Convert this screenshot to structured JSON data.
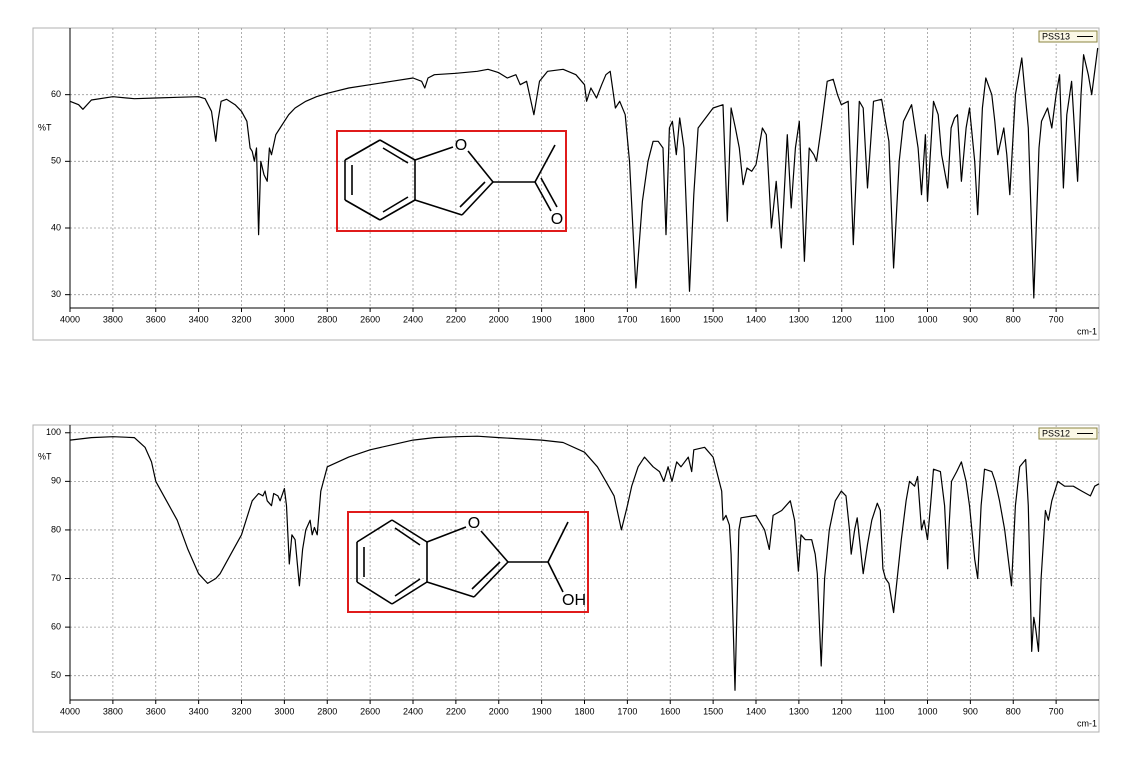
{
  "chart_data": [
    {
      "type": "line",
      "y_label": "%T",
      "x_label": "cm-1",
      "legend": "upper right",
      "grid": true,
      "annotations": [
        "O",
        "O"
      ],
      "xlim": [
        4000,
        600
      ],
      "ylim": [
        28,
        70
      ],
      "xticks": [
        4000,
        3800,
        3600,
        3400,
        3200,
        3000,
        2800,
        2600,
        2400,
        2200,
        2000,
        1900,
        1800,
        1700,
        1600,
        1500,
        1400,
        1300,
        1200,
        1100,
        1000,
        900,
        800,
        700
      ],
      "yticks": [
        30,
        40,
        50,
        60
      ],
      "x": [
        4000,
        3960,
        3940,
        3900,
        3800,
        3700,
        3600,
        3500,
        3400,
        3370,
        3340,
        3320,
        3310,
        3295,
        3270,
        3230,
        3200,
        3175,
        3160,
        3150,
        3140,
        3130,
        3120,
        3110,
        3095,
        3080,
        3070,
        3060,
        3040,
        3020,
        3000,
        2980,
        2950,
        2900,
        2850,
        2800,
        2700,
        2600,
        2500,
        2400,
        2360,
        2345,
        2330,
        2300,
        2200,
        2100,
        2050,
        2020,
        2000,
        1980,
        1960,
        1950,
        1935,
        1918,
        1905,
        1886,
        1850,
        1820,
        1800,
        1795,
        1785,
        1772,
        1760,
        1750,
        1740,
        1728,
        1718,
        1705,
        1695,
        1680,
        1665,
        1652,
        1640,
        1628,
        1617,
        1610,
        1602,
        1595,
        1586,
        1578,
        1568,
        1555,
        1545,
        1535,
        1500,
        1477,
        1467,
        1458,
        1448,
        1439,
        1430,
        1421,
        1410,
        1400,
        1385,
        1376,
        1364,
        1353,
        1341,
        1327,
        1318,
        1308,
        1299,
        1287,
        1276,
        1265,
        1259,
        1248,
        1234,
        1220,
        1210,
        1201,
        1185,
        1173,
        1159,
        1150,
        1140,
        1126,
        1107,
        1090,
        1079,
        1066,
        1056,
        1037,
        1022,
        1014,
        1005,
        1000,
        986,
        975,
        967,
        953,
        945,
        937,
        930,
        921,
        910,
        902,
        890,
        883,
        872,
        864,
        850,
        843,
        836,
        822,
        815,
        808,
        795,
        780,
        765,
        752,
        740,
        734,
        720,
        710,
        700,
        692,
        683,
        675,
        664,
        650,
        642,
        636,
        625,
        617,
        603
      ],
      "series": [
        {
          "name": "PSS13",
          "color": "#000000",
          "values": [
            59,
            58.5,
            57.8,
            59.2,
            59.7,
            59.4,
            59.5,
            59.6,
            59.7,
            59.4,
            57.5,
            53,
            56,
            59,
            59.3,
            58.5,
            57.5,
            56,
            52,
            51.5,
            50,
            52,
            39,
            50,
            48,
            47,
            52,
            51,
            54,
            55,
            56,
            57,
            58,
            59,
            59.7,
            60.2,
            61,
            61.5,
            62,
            62.5,
            62,
            61,
            62.5,
            63,
            63.2,
            63.5,
            63.8,
            63.5,
            63.3,
            62.5,
            63,
            61.5,
            62,
            57,
            62,
            63.5,
            63.8,
            63,
            61.5,
            59,
            61,
            59.5,
            61.5,
            63,
            63.5,
            58,
            59,
            57,
            50,
            31,
            44,
            50,
            53,
            53,
            52,
            39,
            55,
            56,
            51,
            56.5,
            52,
            30.5,
            45,
            55,
            58,
            58.5,
            41,
            58,
            55,
            52,
            46.5,
            49,
            48.5,
            49.5,
            55,
            54,
            40,
            47,
            37,
            54,
            43,
            52,
            56,
            35,
            52,
            51,
            50,
            55,
            62,
            62.3,
            60,
            58.5,
            59,
            37.5,
            59,
            58,
            46,
            59,
            59.3,
            53,
            34,
            50,
            56,
            58.5,
            52,
            45,
            54,
            44,
            59,
            57,
            51,
            46,
            55,
            56.5,
            57,
            47,
            55,
            58,
            50,
            42,
            58,
            62.5,
            60,
            56,
            51,
            55,
            51,
            45,
            60,
            65.5,
            55,
            29.5,
            52,
            56,
            58,
            55,
            60,
            63,
            46,
            57,
            62,
            47,
            60,
            66,
            63,
            60,
            67
          ]
        }
      ]
    },
    {
      "type": "line",
      "y_label": "%T",
      "x_label": "cm-1",
      "legend": "upper right",
      "grid": true,
      "annotations": [
        "O",
        "OH"
      ],
      "xlim": [
        4000,
        600
      ],
      "ylim": [
        45,
        101.6
      ],
      "xticks": [
        4000,
        3800,
        3600,
        3400,
        3200,
        3000,
        2800,
        2600,
        2400,
        2200,
        2000,
        1900,
        1800,
        1700,
        1600,
        1500,
        1400,
        1300,
        1200,
        1100,
        1000,
        900,
        800,
        700
      ],
      "yticks": [
        50,
        60,
        70,
        80,
        90,
        100
      ],
      "x": [
        4000,
        3900,
        3800,
        3700,
        3650,
        3620,
        3600,
        3550,
        3500,
        3450,
        3400,
        3358,
        3320,
        3300,
        3250,
        3200,
        3150,
        3120,
        3100,
        3090,
        3080,
        3060,
        3050,
        3030,
        3020,
        3000,
        2990,
        2977,
        2965,
        2950,
        2930,
        2915,
        2900,
        2880,
        2870,
        2860,
        2847,
        2830,
        2800,
        2700,
        2600,
        2500,
        2400,
        2300,
        2200,
        2100,
        2000,
        1900,
        1850,
        1800,
        1770,
        1750,
        1731,
        1714,
        1700,
        1690,
        1675,
        1660,
        1640,
        1625,
        1615,
        1605,
        1596,
        1585,
        1575,
        1558,
        1550,
        1545,
        1520,
        1500,
        1480,
        1477,
        1470,
        1462,
        1458,
        1449,
        1440,
        1435,
        1400,
        1390,
        1380,
        1369,
        1360,
        1340,
        1320,
        1310,
        1301,
        1295,
        1285,
        1270,
        1262,
        1257,
        1248,
        1240,
        1229,
        1215,
        1201,
        1190,
        1182,
        1178,
        1170,
        1164,
        1150,
        1140,
        1130,
        1117,
        1110,
        1104,
        1098,
        1090,
        1079,
        1061,
        1050,
        1042,
        1030,
        1023,
        1014,
        1008,
        1000,
        993,
        986,
        970,
        960,
        953,
        950,
        944,
        932,
        921,
        910,
        902,
        890,
        883,
        875,
        867,
        850,
        842,
        832,
        820,
        804,
        795,
        785,
        771,
        765,
        757,
        752,
        748,
        741,
        735,
        725,
        718,
        710,
        696,
        680,
        660,
        640,
        620,
        610,
        600
      ],
      "series": [
        {
          "name": "PSS12",
          "color": "#000000",
          "values": [
            98.5,
            99,
            99.2,
            99,
            97,
            94,
            90,
            86,
            82,
            76,
            71,
            69,
            70,
            71,
            75,
            79,
            86,
            87.5,
            87,
            88,
            86,
            85,
            87.5,
            87,
            86,
            88.5,
            85,
            73,
            79,
            78,
            68.5,
            76,
            80,
            82,
            79,
            80.5,
            79,
            88,
            93,
            95,
            96.5,
            97.5,
            98.5,
            99,
            99.2,
            99.3,
            99,
            98.5,
            98,
            96,
            93,
            90,
            87,
            80,
            85,
            89,
            93,
            95,
            93,
            92,
            90,
            93,
            90,
            94,
            93,
            95,
            92,
            96.5,
            97,
            95,
            88,
            82,
            83,
            81,
            75,
            47,
            80,
            82.5,
            83,
            81.5,
            80,
            76,
            83,
            84,
            86,
            82,
            71.5,
            79,
            78,
            78,
            75,
            71,
            52,
            70,
            80,
            86,
            88,
            87,
            80,
            75,
            80,
            82.5,
            71,
            77,
            82,
            85.5,
            84,
            72,
            70,
            69,
            63,
            78,
            86,
            90,
            89,
            91,
            80,
            82,
            78,
            85,
            92.5,
            92,
            85,
            72,
            80,
            90,
            92,
            94,
            90,
            85,
            74,
            70,
            85,
            92.5,
            92,
            90,
            86,
            80,
            68.5,
            85,
            93,
            94.5,
            85,
            55,
            62,
            60,
            55,
            70,
            84,
            82,
            86,
            90,
            89,
            89,
            88,
            87,
            89,
            89.5
          ]
        }
      ]
    }
  ]
}
